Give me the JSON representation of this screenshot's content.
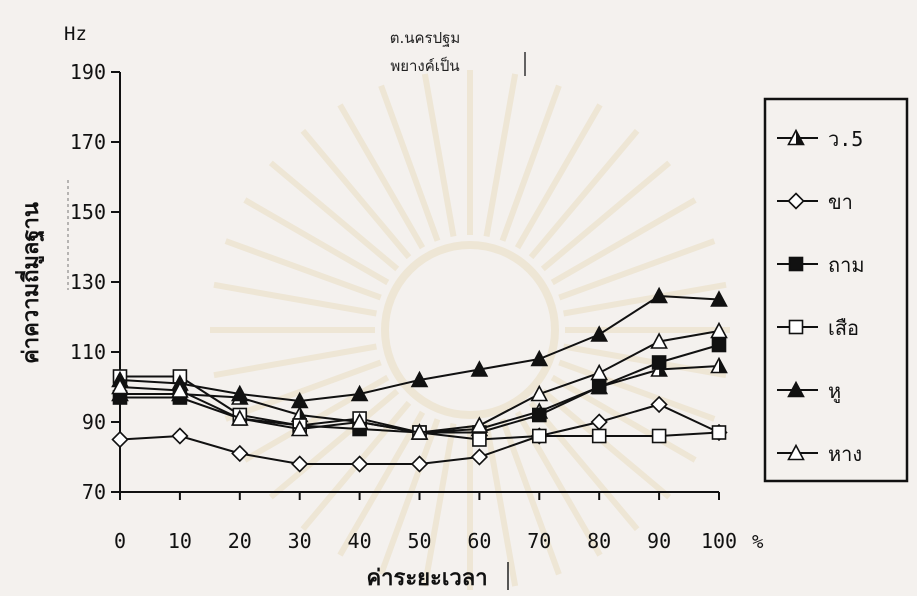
{
  "chart_data": {
    "type": "line",
    "title": "ต.นครปฐม",
    "subtitle": "พยางค์เป็น",
    "ylabel": "ค่าความถี่มูลฐาน",
    "xlabel": "ค่าระยะเวลา",
    "y_unit": "Hz",
    "x_unit": "%",
    "x": [
      0,
      10,
      20,
      30,
      40,
      50,
      60,
      70,
      80,
      90,
      100
    ],
    "ylim": [
      70,
      190
    ],
    "yticks": [
      70,
      90,
      110,
      130,
      150,
      170,
      190
    ],
    "legend_position": "right",
    "grid": false,
    "series": [
      {
        "name": "ว.5",
        "marker": "half-filled-triangle",
        "values": [
          98,
          98,
          97,
          92,
          90,
          87,
          88,
          93,
          100,
          105,
          106
        ]
      },
      {
        "name": "ขา",
        "marker": "hollow-diamond",
        "values": [
          85,
          86,
          81,
          78,
          78,
          78,
          80,
          86,
          90,
          95,
          87
        ]
      },
      {
        "name": "ถาม",
        "marker": "filled-square",
        "values": [
          97,
          97,
          91,
          89,
          88,
          87,
          87,
          92,
          100,
          107,
          112
        ]
      },
      {
        "name": "เสือ",
        "marker": "hollow-square",
        "values": [
          103,
          103,
          92,
          89,
          91,
          87,
          85,
          86,
          86,
          86,
          87
        ]
      },
      {
        "name": "หู",
        "marker": "filled-triangle",
        "values": [
          102,
          101,
          98,
          96,
          98,
          102,
          105,
          108,
          115,
          126,
          125
        ]
      },
      {
        "name": "หาง",
        "marker": "hollow-triangle",
        "values": [
          100,
          99,
          91,
          88,
          90,
          87,
          89,
          98,
          104,
          113,
          116
        ]
      }
    ]
  }
}
